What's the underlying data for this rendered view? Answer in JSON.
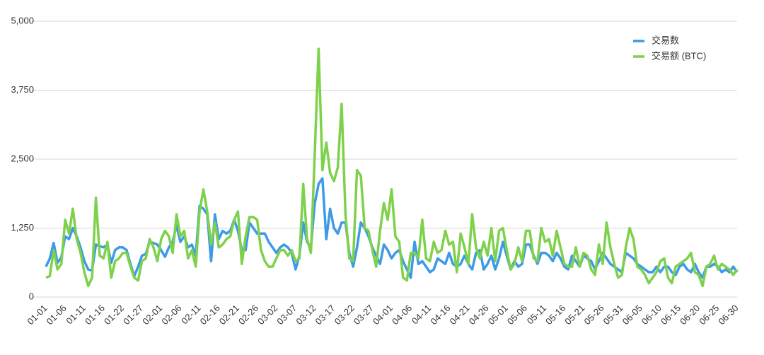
{
  "chart_data": {
    "type": "line",
    "categories": [
      "01-01",
      null,
      null,
      null,
      null,
      "01-06",
      null,
      null,
      null,
      null,
      "01-11",
      null,
      null,
      null,
      null,
      "01-16",
      null,
      null,
      null,
      null,
      "01-22",
      null,
      null,
      null,
      null,
      "01-27",
      null,
      null,
      null,
      null,
      "02-01",
      null,
      null,
      null,
      null,
      "02-06",
      null,
      null,
      null,
      null,
      "02-11",
      null,
      null,
      null,
      null,
      "02-16",
      null,
      null,
      null,
      null,
      "02-21",
      null,
      null,
      null,
      null,
      "02-26",
      null,
      null,
      null,
      null,
      "03-02",
      null,
      null,
      null,
      null,
      "03-07",
      null,
      null,
      null,
      null,
      "03-12",
      null,
      null,
      null,
      null,
      "03-17",
      null,
      null,
      null,
      null,
      "03-22",
      null,
      null,
      null,
      null,
      "03-27",
      null,
      null,
      null,
      null,
      "04-01",
      null,
      null,
      null,
      null,
      "04-06",
      null,
      null,
      null,
      null,
      "04-11",
      null,
      null,
      null,
      null,
      "04-16",
      null,
      null,
      null,
      null,
      "04-21",
      null,
      null,
      null,
      null,
      "04-26",
      null,
      null,
      null,
      null,
      "05-01",
      null,
      null,
      null,
      null,
      "05-06",
      null,
      null,
      null,
      null,
      "05-11",
      null,
      null,
      null,
      null,
      "05-16",
      null,
      null,
      null,
      null,
      "05-21",
      null,
      null,
      null,
      null,
      "05-26",
      null,
      null,
      null,
      null,
      "05-31",
      null,
      null,
      null,
      null,
      "06-05",
      null,
      null,
      null,
      null,
      "06-10",
      null,
      null,
      null,
      null,
      "06-15",
      null,
      null,
      null,
      null,
      "06-20",
      null,
      null,
      null,
      null,
      "06-25",
      null,
      null,
      null,
      null,
      "06-30"
    ],
    "series": [
      {
        "name": "交易数",
        "color": "#3d9ae8",
        "values": [
          550,
          700,
          980,
          620,
          720,
          1100,
          1050,
          1250,
          1100,
          900,
          650,
          500,
          480,
          950,
          920,
          900,
          950,
          620,
          850,
          900,
          900,
          850,
          600,
          380,
          550,
          750,
          780,
          1000,
          980,
          950,
          850,
          730,
          900,
          1000,
          1300,
          1000,
          1100,
          900,
          950,
          750,
          1650,
          1600,
          1500,
          650,
          1500,
          1050,
          1200,
          1150,
          1200,
          1400,
          1200,
          850,
          850,
          1350,
          1250,
          1150,
          1150,
          1150,
          1000,
          900,
          800,
          900,
          950,
          900,
          800,
          500,
          750,
          1350,
          1000,
          900,
          1700,
          2050,
          2150,
          1050,
          1600,
          1250,
          1150,
          1350,
          1350,
          800,
          550,
          900,
          1350,
          1250,
          1100,
          900,
          750,
          600,
          950,
          850,
          700,
          800,
          850,
          650,
          500,
          350,
          1000,
          600,
          650,
          550,
          450,
          500,
          700,
          650,
          600,
          800,
          600,
          550,
          600,
          750,
          600,
          500,
          800,
          850,
          500,
          600,
          750,
          500,
          700,
          1000,
          750,
          500,
          650,
          550,
          600,
          950,
          950,
          750,
          600,
          800,
          800,
          750,
          650,
          800,
          700,
          550,
          500,
          750,
          650,
          550,
          750,
          700,
          650,
          500,
          650,
          800,
          700,
          600,
          550,
          500,
          450,
          800,
          750,
          700,
          600,
          550,
          500,
          450,
          450,
          550,
          450,
          550,
          550,
          450,
          400,
          550,
          600,
          500,
          450,
          600,
          450,
          350,
          550,
          550,
          600,
          550,
          450,
          500,
          450,
          550,
          450
        ]
      },
      {
        "name": "交易额 (BTC)",
        "color": "#7ed14a",
        "values": [
          350,
          380,
          850,
          500,
          600,
          1400,
          1150,
          1600,
          1050,
          800,
          450,
          200,
          350,
          1800,
          750,
          700,
          1000,
          350,
          650,
          700,
          800,
          800,
          550,
          350,
          300,
          650,
          700,
          1050,
          900,
          650,
          1050,
          1200,
          1100,
          800,
          1500,
          1100,
          1200,
          700,
          850,
          550,
          1550,
          1950,
          1550,
          950,
          1350,
          900,
          950,
          1050,
          1100,
          1400,
          1550,
          600,
          1100,
          1450,
          1450,
          1400,
          850,
          650,
          550,
          550,
          700,
          850,
          850,
          750,
          850,
          650,
          700,
          2050,
          1050,
          800,
          2600,
          4500,
          2300,
          2800,
          2250,
          2100,
          2350,
          3500,
          1500,
          700,
          650,
          2300,
          2200,
          1250,
          1200,
          850,
          550,
          1200,
          1700,
          1400,
          1950,
          1100,
          1000,
          350,
          300,
          800,
          800,
          700,
          1400,
          700,
          650,
          1000,
          800,
          850,
          1200,
          950,
          1000,
          450,
          1150,
          900,
          600,
          1500,
          900,
          700,
          1000,
          750,
          1250,
          650,
          1200,
          1250,
          850,
          500,
          600,
          900,
          650,
          1200,
          1200,
          700,
          650,
          1250,
          1000,
          1050,
          750,
          1200,
          900,
          600,
          550,
          550,
          900,
          550,
          800,
          750,
          500,
          400,
          950,
          600,
          1350,
          900,
          600,
          350,
          400,
          900,
          1250,
          1050,
          550,
          500,
          400,
          250,
          350,
          450,
          650,
          700,
          350,
          250,
          550,
          600,
          650,
          700,
          800,
          450,
          400,
          200,
          550,
          600,
          750,
          500,
          600,
          550,
          500,
          400,
          500
        ]
      }
    ],
    "ylim": [
      0,
      5000
    ],
    "yticks": [
      0,
      {
        "value": 1250,
        "label": "1,250"
      },
      {
        "value": 2500,
        "label": "2,500"
      },
      {
        "value": 3750,
        "label": "3,750"
      },
      {
        "value": 5000,
        "label": "5,000"
      }
    ],
    "grid": true,
    "legend": "top-right"
  }
}
